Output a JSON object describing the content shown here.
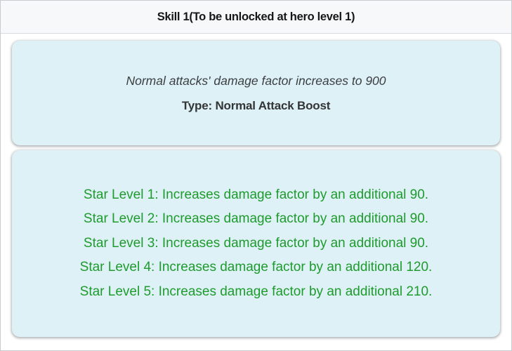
{
  "header": {
    "title": "Skill 1(To be unlocked at hero level 1)"
  },
  "summary": {
    "description": "Normal attacks' damage factor increases to 900",
    "type_label": "Type: Normal Attack Boost"
  },
  "star_levels": [
    "Star Level 1: Increases damage factor by an additional 90.",
    "Star Level 2: Increases damage factor by an additional 90.",
    "Star Level 3: Increases damage factor by an additional 90.",
    "Star Level 4: Increases damage factor by an additional 120.",
    "Star Level 5: Increases damage factor by an additional 210."
  ],
  "colors": {
    "header_background": "#f7f8f9",
    "card_background": "#ddf1f6",
    "star_text_green": "#1e9b2d"
  }
}
